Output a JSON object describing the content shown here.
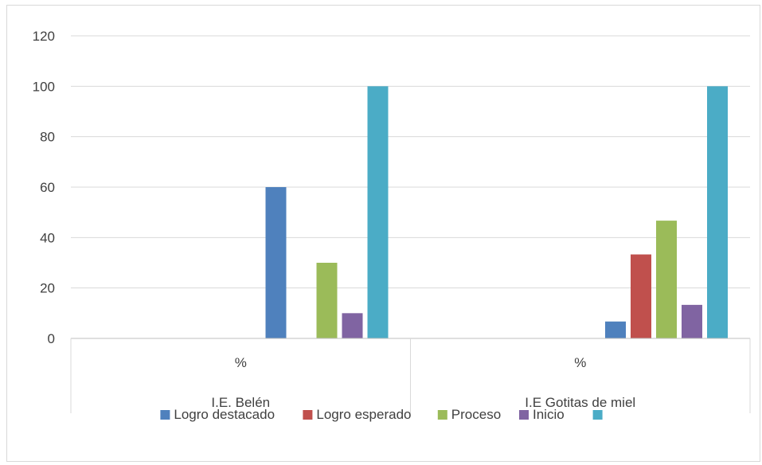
{
  "chart_data": {
    "type": "bar",
    "title": "",
    "xlabel": "",
    "ylabel": "",
    "ylim": [
      0,
      120
    ],
    "yticks": [
      0,
      20,
      40,
      60,
      80,
      100,
      120
    ],
    "grid": true,
    "legend_position": "bottom",
    "categories": [
      {
        "sub_label": "%",
        "group_label": "I.E. Belén"
      },
      {
        "sub_label": "%",
        "group_label": "I.E Gotitas de miel"
      }
    ],
    "series": [
      {
        "name": "Logro destacado",
        "color": "#4f81bd",
        "values": [
          60,
          6.7
        ]
      },
      {
        "name": "Logro esperado",
        "color": "#c0504d",
        "values": [
          0,
          33.3
        ]
      },
      {
        "name": "Proceso",
        "color": "#9bbb59",
        "values": [
          30,
          46.7
        ]
      },
      {
        "name": "Inicio",
        "color": "#8064a2",
        "values": [
          10,
          13.3
        ]
      },
      {
        "name": "",
        "color": "#4bacc6",
        "values": [
          100,
          100
        ]
      }
    ]
  }
}
